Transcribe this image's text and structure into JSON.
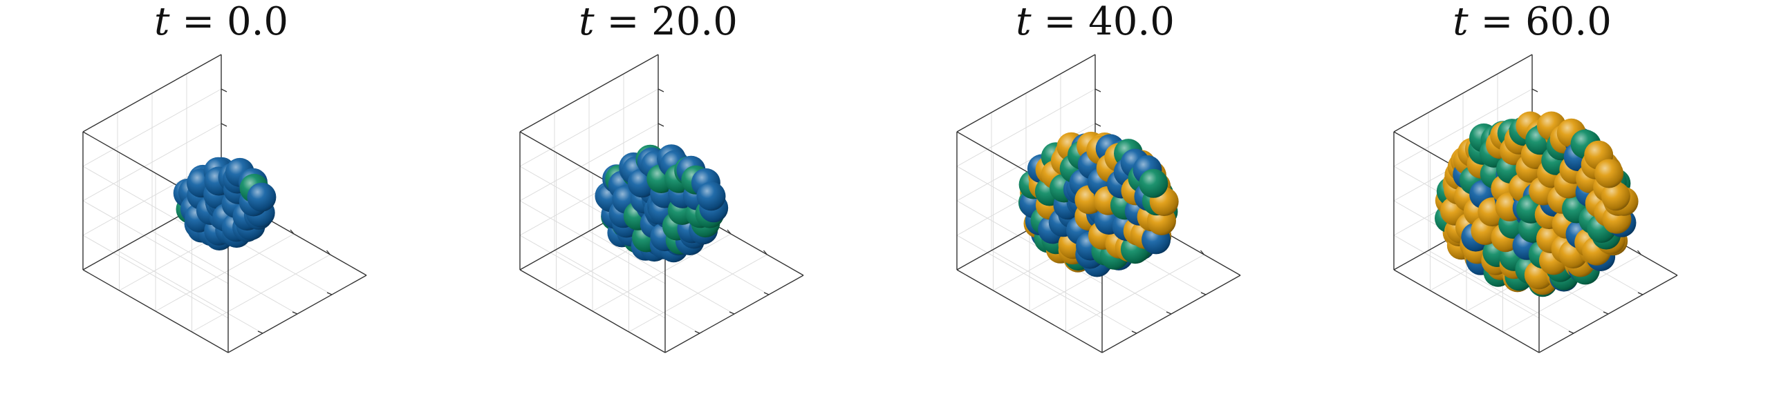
{
  "chart_data": [
    {
      "type": "scatter3d",
      "title": "t = 0.0",
      "t_label": "t",
      "t_value": "0.0",
      "grid": true,
      "series_colors": {
        "type1": "#0f5fa3",
        "type2": "#0a8a63",
        "type3": "#e09a0a"
      },
      "cluster": {
        "cells": 48,
        "fraction_type1": 0.92,
        "fraction_type2": 0.08,
        "fraction_type3": 0.0,
        "radius": 0.38
      }
    },
    {
      "type": "scatter3d",
      "title": "t = 20.0",
      "t_label": "t",
      "t_value": "20.0",
      "grid": true,
      "series_colors": {
        "type1": "#0f5fa3",
        "type2": "#0a8a63",
        "type3": "#e09a0a"
      },
      "cluster": {
        "cells": 80,
        "fraction_type1": 0.65,
        "fraction_type2": 0.35,
        "fraction_type3": 0.0,
        "radius": 0.52
      }
    },
    {
      "type": "scatter3d",
      "title": "t = 40.0",
      "t_label": "t",
      "t_value": "40.0",
      "grid": true,
      "series_colors": {
        "type1": "#0f5fa3",
        "type2": "#0a8a63",
        "type3": "#e09a0a"
      },
      "cluster": {
        "cells": 130,
        "fraction_type1": 0.3,
        "fraction_type2": 0.4,
        "fraction_type3": 0.3,
        "radius": 0.68
      }
    },
    {
      "type": "scatter3d",
      "title": "t = 60.0",
      "t_label": "t",
      "t_value": "60.0",
      "grid": true,
      "series_colors": {
        "type1": "#0f5fa3",
        "type2": "#0a8a63",
        "type3": "#e09a0a"
      },
      "cluster": {
        "cells": 200,
        "fraction_type1": 0.08,
        "fraction_type2": 0.32,
        "fraction_type3": 0.6,
        "radius": 0.88
      }
    }
  ]
}
